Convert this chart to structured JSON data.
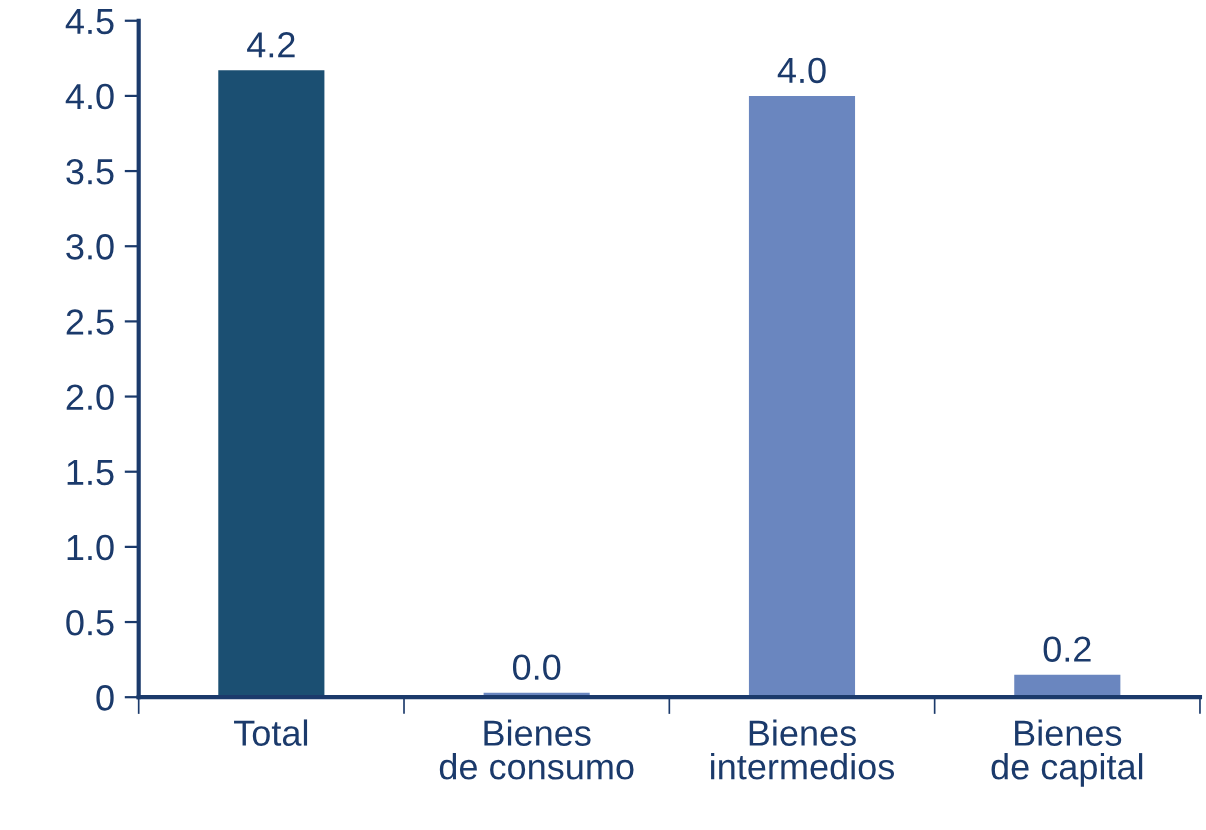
{
  "chart_data": {
    "type": "bar",
    "categories": [
      "Total",
      "Bienes\nde consumo",
      "Bienes\nintermedios",
      "Bienes\nde capital"
    ],
    "values": [
      4.17,
      0.03,
      4.0,
      0.15
    ],
    "colors": [
      "#1b4f72",
      "#6a86bf",
      "#6a86bf",
      "#6a86bf"
    ],
    "value_labels": [
      "4.2",
      "0.0",
      "4.0",
      "0.2"
    ],
    "ylim": [
      0,
      4.5
    ],
    "yticks": [
      0,
      {
        "value": 0.5,
        "label": "0.5"
      },
      {
        "value": 1,
        "label": "1.0"
      },
      {
        "value": 1.5,
        "label": "1.5"
      },
      {
        "value": 2,
        "label": "2.0"
      },
      {
        "value": 2.5,
        "label": "2.5"
      },
      {
        "value": 3,
        "label": "3.0"
      },
      {
        "value": 3.5,
        "label": "3.5"
      },
      {
        "value": 4,
        "label": "4.0"
      },
      {
        "value": 4.5,
        "label": "4.5"
      }
    ],
    "grid": false,
    "legend": false
  }
}
